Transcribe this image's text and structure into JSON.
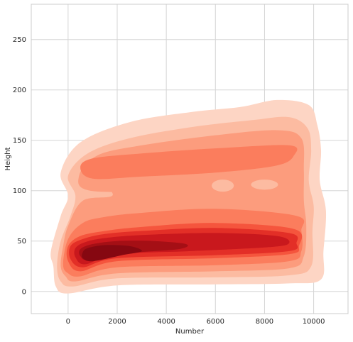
{
  "chart_data": {
    "type": "kde_contour",
    "title": "",
    "xlabel": "Number",
    "ylabel": "Height",
    "xlim": [
      -1500,
      11400
    ],
    "ylim": [
      -22,
      285
    ],
    "x_ticks": [
      0,
      2000,
      4000,
      6000,
      8000,
      10000
    ],
    "y_ticks": [
      0,
      50,
      100,
      150,
      200,
      250
    ],
    "grid": true,
    "colormap": "Reds",
    "levels": [
      {
        "level": 1,
        "color": "#fdd5c4"
      },
      {
        "level": 2,
        "color": "#fcbba1"
      },
      {
        "level": 3,
        "color": "#fc9c7d"
      },
      {
        "level": 4,
        "color": "#fb7d5d"
      },
      {
        "level": 5,
        "color": "#f5553d"
      },
      {
        "level": 6,
        "color": "#e32f27"
      },
      {
        "level": 7,
        "color": "#c9181d"
      },
      {
        "level": 8,
        "color": "#a50f15"
      },
      {
        "level": 9,
        "color": "#860811"
      }
    ],
    "density_peaks": [
      {
        "x": 1400,
        "y": 38,
        "note": "highest density core"
      },
      {
        "x": 6000,
        "y": 45,
        "note": "lower band ridge"
      },
      {
        "x": 5000,
        "y": 127,
        "note": "upper band ridge"
      }
    ],
    "x_range_of_data": [
      -500,
      10500
    ],
    "y_range_of_data": [
      10,
      190
    ]
  }
}
